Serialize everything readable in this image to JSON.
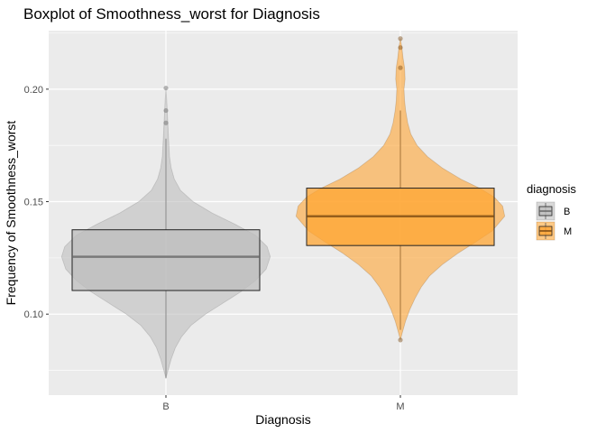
{
  "chart_data": {
    "type": "boxplot-violin",
    "title": "Boxplot of Smoothness_worst for Diagnosis",
    "xlabel": "Diagnosis",
    "ylabel": "Frequency of Smoothness_worst",
    "categories": [
      "B",
      "M"
    ],
    "ylim": [
      0.064,
      0.226
    ],
    "yticks": [
      0.1,
      0.15,
      0.2
    ],
    "yticklabels": [
      "0.10",
      "0.15",
      "0.20"
    ],
    "grid": true,
    "legend": {
      "title": "diagnosis",
      "placement": "right",
      "entries": [
        "B",
        "M"
      ]
    },
    "colors": {
      "B": "#bebebe",
      "M": "#ffa533",
      "panel": "#ebebeb",
      "grid": "#ffffff"
    },
    "series": [
      {
        "name": "B",
        "box": {
          "q1": 0.1105,
          "median": 0.1255,
          "q3": 0.1375
        },
        "whisker_low": 0.0715,
        "whisker_high": 0.178,
        "outliers": [
          0.2005,
          0.1905,
          0.185
        ],
        "density": [
          [
            0.0715,
            0.0
          ],
          [
            0.075,
            0.02
          ],
          [
            0.08,
            0.05
          ],
          [
            0.085,
            0.09
          ],
          [
            0.09,
            0.15
          ],
          [
            0.095,
            0.24
          ],
          [
            0.1,
            0.38
          ],
          [
            0.105,
            0.55
          ],
          [
            0.11,
            0.72
          ],
          [
            0.115,
            0.86
          ],
          [
            0.12,
            0.96
          ],
          [
            0.1255,
            1.0
          ],
          [
            0.13,
            0.97
          ],
          [
            0.135,
            0.86
          ],
          [
            0.14,
            0.66
          ],
          [
            0.145,
            0.44
          ],
          [
            0.15,
            0.26
          ],
          [
            0.155,
            0.14
          ],
          [
            0.16,
            0.08
          ],
          [
            0.165,
            0.05
          ],
          [
            0.17,
            0.035
          ],
          [
            0.178,
            0.025
          ],
          [
            0.185,
            0.018
          ],
          [
            0.1905,
            0.012
          ],
          [
            0.195,
            0.008
          ],
          [
            0.2005,
            0.0
          ]
        ]
      },
      {
        "name": "M",
        "box": {
          "q1": 0.1305,
          "median": 0.1435,
          "q3": 0.156
        },
        "whisker_low": 0.093,
        "whisker_high": 0.1905,
        "outliers": [
          0.0885,
          0.2095,
          0.2185,
          0.2225
        ],
        "density": [
          [
            0.0885,
            0.0
          ],
          [
            0.092,
            0.02
          ],
          [
            0.097,
            0.05
          ],
          [
            0.102,
            0.09
          ],
          [
            0.107,
            0.14
          ],
          [
            0.112,
            0.2
          ],
          [
            0.117,
            0.28
          ],
          [
            0.122,
            0.4
          ],
          [
            0.127,
            0.55
          ],
          [
            0.132,
            0.72
          ],
          [
            0.137,
            0.88
          ],
          [
            0.1435,
            1.0
          ],
          [
            0.148,
            0.98
          ],
          [
            0.152,
            0.9
          ],
          [
            0.156,
            0.76
          ],
          [
            0.16,
            0.58
          ],
          [
            0.165,
            0.4
          ],
          [
            0.17,
            0.26
          ],
          [
            0.175,
            0.16
          ],
          [
            0.18,
            0.1
          ],
          [
            0.185,
            0.07
          ],
          [
            0.1905,
            0.05
          ],
          [
            0.195,
            0.04
          ],
          [
            0.2,
            0.035
          ],
          [
            0.2045,
            0.045
          ],
          [
            0.2095,
            0.04
          ],
          [
            0.214,
            0.025
          ],
          [
            0.2185,
            0.015
          ],
          [
            0.2225,
            0.0
          ]
        ]
      }
    ]
  }
}
